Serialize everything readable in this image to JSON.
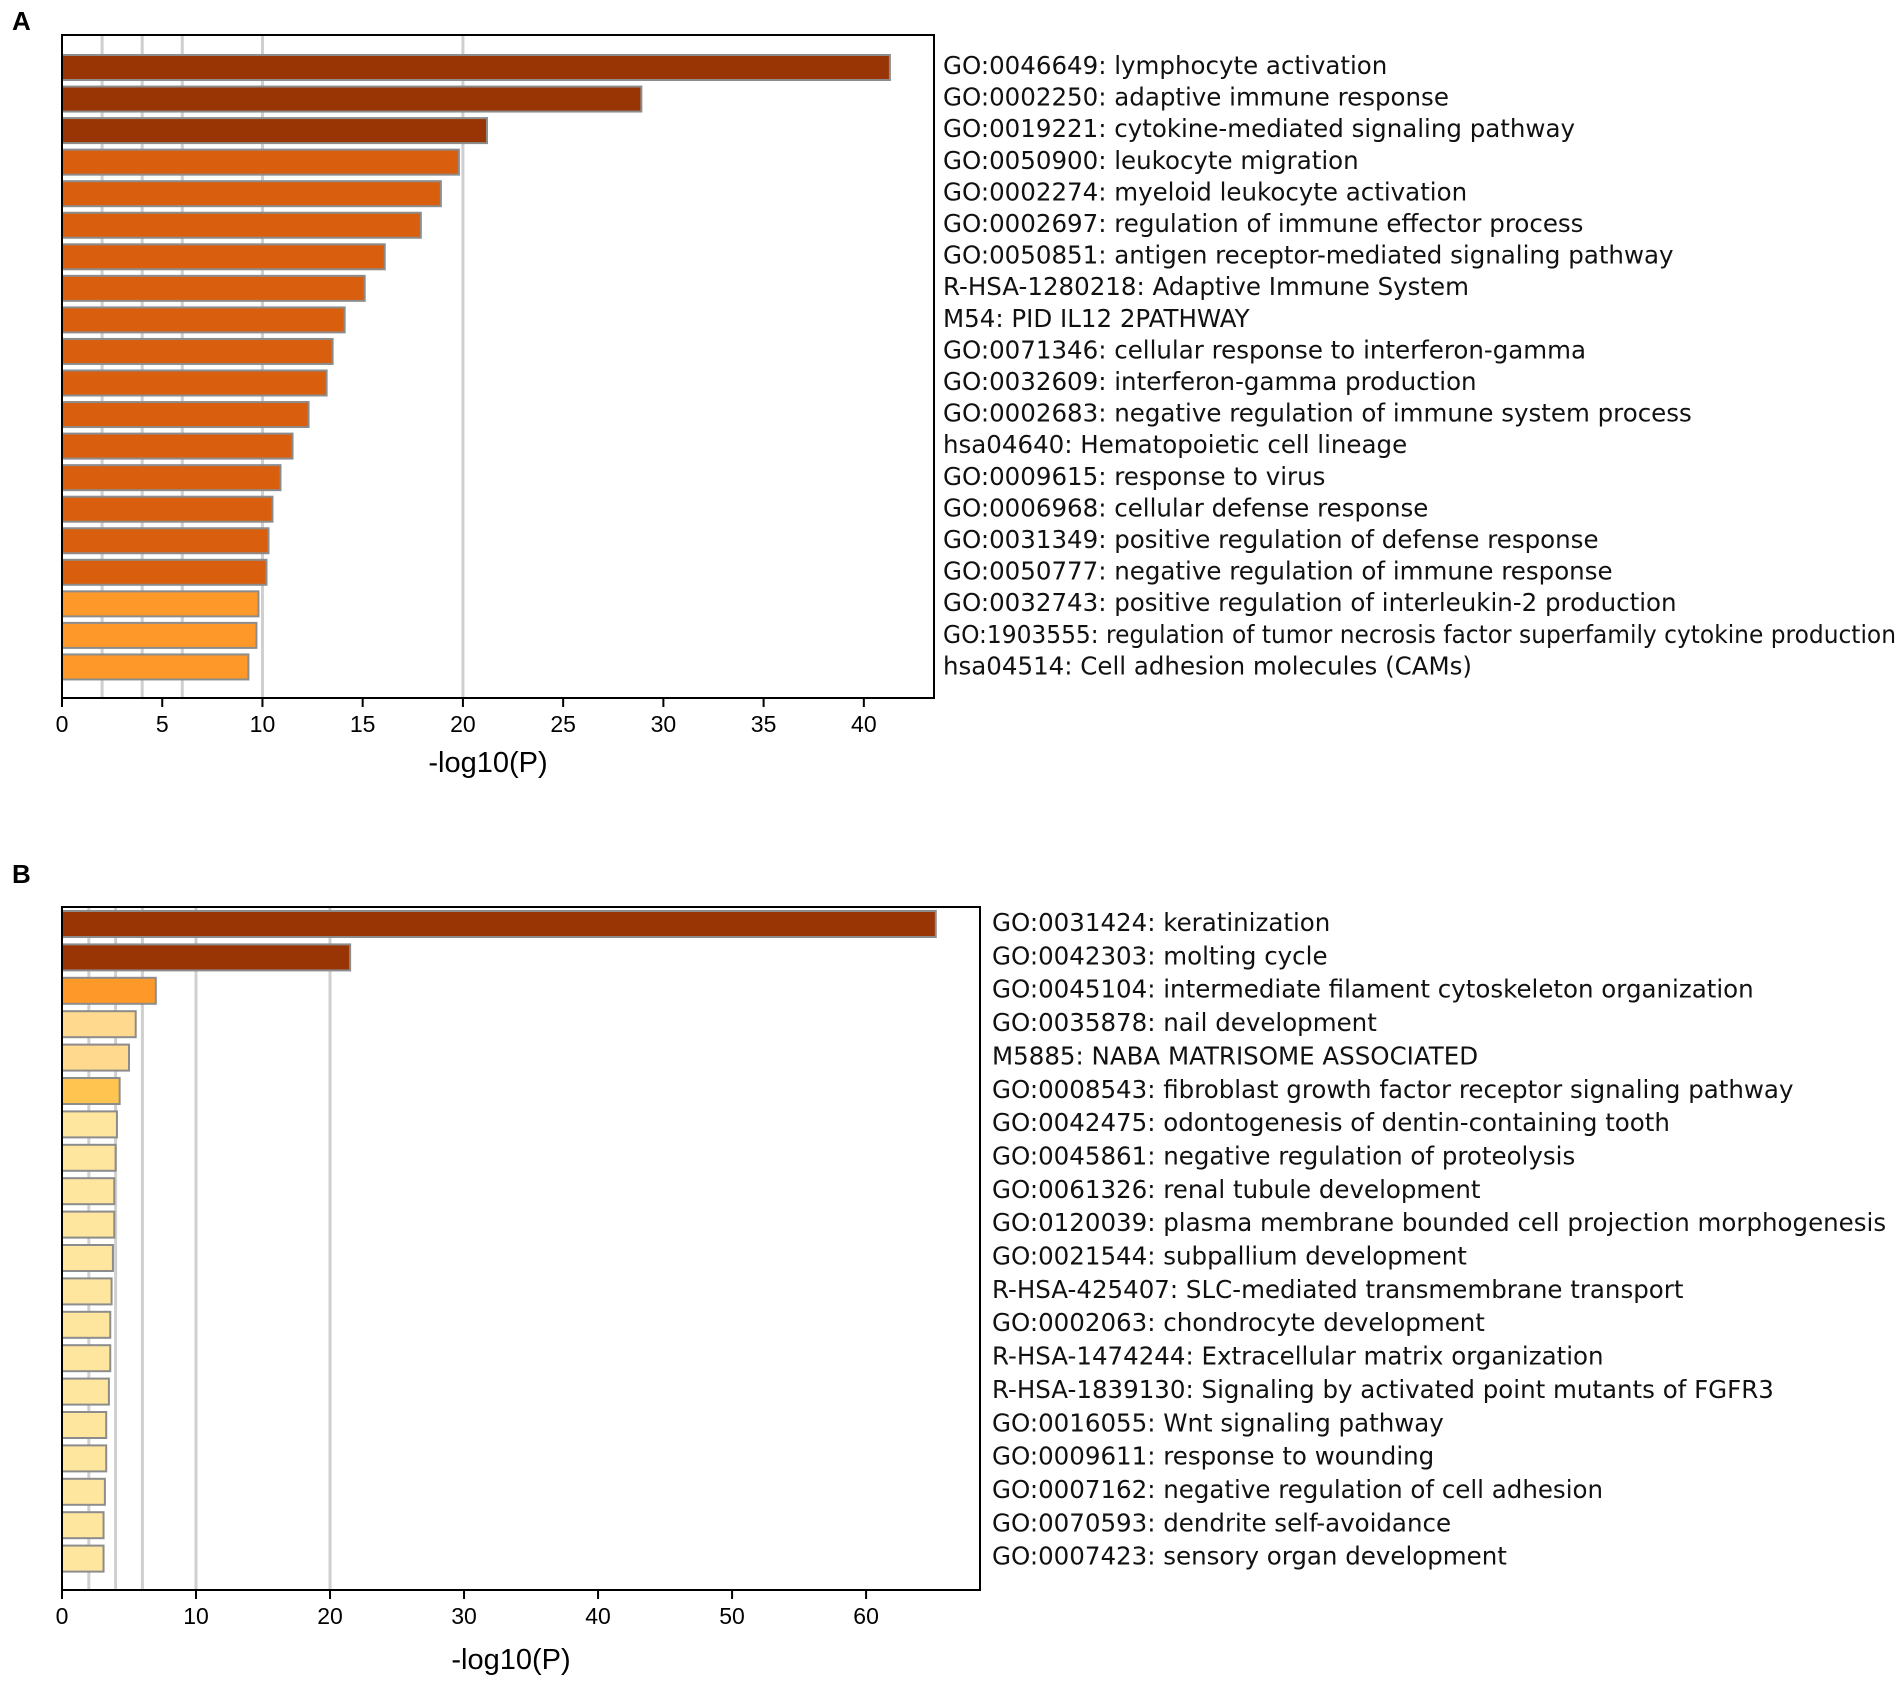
{
  "chart_data": [
    {
      "type": "bar",
      "orientation": "horizontal",
      "panel_label": "A",
      "xlabel": "-log10(P)",
      "xlim": [
        0,
        43.5
      ],
      "xticks": [
        0,
        5,
        10,
        15,
        20,
        25,
        30,
        35,
        40
      ],
      "gridlines": [
        2,
        4,
        6,
        10,
        20
      ],
      "categories": [
        "GO:0046649: lymphocyte activation",
        "GO:0002250: adaptive immune response",
        "GO:0019221: cytokine-mediated signaling pathway",
        "GO:0050900: leukocyte migration",
        "GO:0002274: myeloid leukocyte activation",
        "GO:0002697: regulation of immune effector process",
        "GO:0050851: antigen receptor-mediated signaling pathway",
        "R-HSA-1280218: Adaptive Immune System",
        "M54: PID IL12 2PATHWAY",
        "GO:0071346: cellular response to interferon-gamma",
        "GO:0032609: interferon-gamma production",
        "GO:0002683: negative regulation of immune system process",
        "hsa04640: Hematopoietic cell lineage",
        "GO:0009615: response to virus",
        "GO:0006968: cellular defense response",
        "GO:0031349: positive regulation of defense response",
        "GO:0050777: negative regulation of immune response",
        "GO:0032743: positive regulation of interleukin-2 production",
        "GO:1903555: regulation of tumor necrosis factor superfamily cytokine production",
        "hsa04514: Cell adhesion molecules (CAMs)"
      ],
      "values": [
        41.3,
        28.9,
        21.2,
        19.8,
        18.9,
        17.9,
        16.1,
        15.1,
        14.1,
        13.5,
        13.2,
        12.3,
        11.5,
        10.9,
        10.5,
        10.3,
        10.2,
        9.8,
        9.7,
        9.3
      ],
      "colors": [
        "#993404",
        "#993404",
        "#993404",
        "#d95f0e",
        "#d95f0e",
        "#d95f0e",
        "#d95f0e",
        "#d95f0e",
        "#d95f0e",
        "#d95f0e",
        "#d95f0e",
        "#d95f0e",
        "#d95f0e",
        "#d95f0e",
        "#d95f0e",
        "#d95f0e",
        "#d95f0e",
        "#fe9929",
        "#fe9929",
        "#fe9929"
      ]
    },
    {
      "type": "bar",
      "orientation": "horizontal",
      "panel_label": "B",
      "xlabel": "-log10(P)",
      "xlim": [
        0,
        68.5
      ],
      "xticks": [
        0,
        10,
        20,
        30,
        40,
        50,
        60
      ],
      "gridlines": [
        2,
        4,
        6,
        10,
        20
      ],
      "categories": [
        "GO:0031424: keratinization",
        "GO:0042303: molting cycle",
        "GO:0045104: intermediate filament cytoskeleton organization",
        "GO:0035878: nail development",
        "M5885: NABA MATRISOME ASSOCIATED",
        "GO:0008543: fibroblast growth factor receptor signaling pathway",
        "GO:0042475: odontogenesis of dentin-containing tooth",
        "GO:0045861: negative regulation of proteolysis",
        "GO:0061326: renal tubule development",
        "GO:0120039: plasma membrane bounded cell projection morphogenesis",
        "GO:0021544: subpallium development",
        "R-HSA-425407: SLC-mediated transmembrane transport",
        "GO:0002063: chondrocyte development",
        "R-HSA-1474244: Extracellular matrix organization",
        "R-HSA-1839130: Signaling by activated point mutants of FGFR3",
        "GO:0016055: Wnt signaling pathway",
        "GO:0009611: response to wounding",
        "GO:0007162: negative regulation of cell adhesion",
        "GO:0070593: dendrite self-avoidance",
        "GO:0007423: sensory organ development"
      ],
      "values": [
        65.2,
        21.5,
        7.0,
        5.5,
        5.0,
        4.3,
        4.1,
        4.0,
        3.9,
        3.9,
        3.8,
        3.7,
        3.6,
        3.6,
        3.5,
        3.3,
        3.3,
        3.2,
        3.1,
        3.1
      ],
      "colors": [
        "#993404",
        "#993404",
        "#fe9929",
        "#fed98e",
        "#fed98e",
        "#fec44f",
        "#ffe69e",
        "#ffe69e",
        "#ffe69e",
        "#ffe69e",
        "#ffe69e",
        "#ffe69e",
        "#ffe69e",
        "#ffe69e",
        "#ffe69e",
        "#ffe69e",
        "#ffe69e",
        "#ffe69e",
        "#ffe69e",
        "#ffe69e"
      ]
    }
  ]
}
